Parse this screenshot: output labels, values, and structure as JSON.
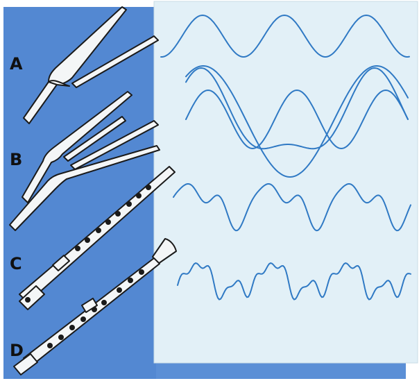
{
  "labels": {
    "a": "A",
    "b": "B",
    "c": "C",
    "d": "D"
  },
  "colors": {
    "blue_panel": "#5b8fd6",
    "blue_panel_dark": "#3f72bf",
    "paper": "#e2f0f7",
    "wave": "#2f79c4",
    "outline": "#1a1a1a",
    "instrument_fill": "#f4f6f7"
  },
  "instruments": [
    {
      "label_key": "a",
      "name": "tuning-fork"
    },
    {
      "label_key": "b",
      "name": "double-tuning-fork"
    },
    {
      "label_key": "c",
      "name": "flute"
    },
    {
      "label_key": "d",
      "name": "clarinet"
    }
  ]
}
